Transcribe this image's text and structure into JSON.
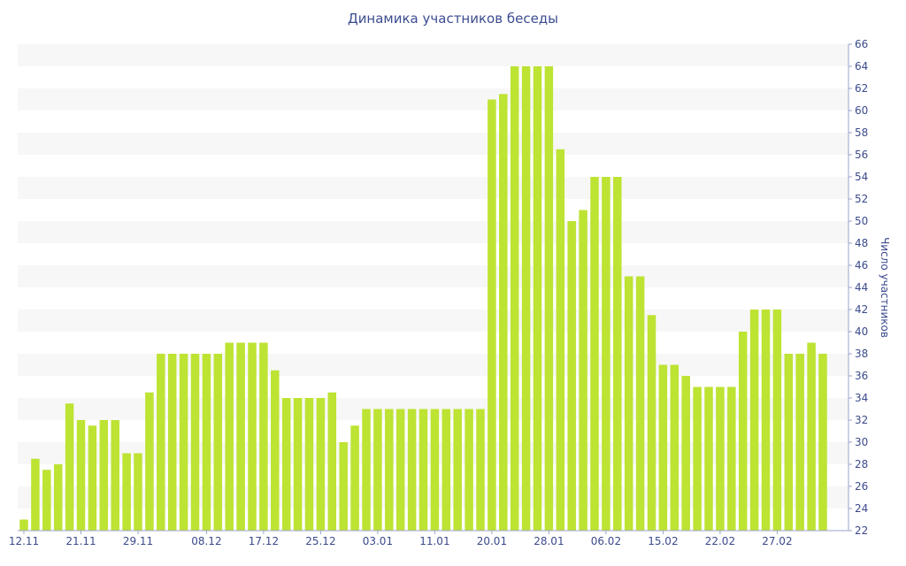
{
  "chart_data": {
    "type": "bar",
    "title": "Динамика участников беседы",
    "xlabel": "",
    "ylabel": "Число участников",
    "ylim": [
      22,
      66
    ],
    "yticks": [
      22,
      24,
      26,
      28,
      30,
      32,
      34,
      36,
      38,
      40,
      42,
      44,
      46,
      48,
      50,
      52,
      54,
      56,
      58,
      60,
      62,
      64,
      66
    ],
    "y_axis_position": "right",
    "grid": "alternating horizontal bands",
    "bar_color": "#bde333",
    "band_color": "#f7f7f7",
    "text_color": "#3b4a8c",
    "xticks": [
      {
        "label": "12.11",
        "index": 0
      },
      {
        "label": "21.11",
        "index": 5
      },
      {
        "label": "29.11",
        "index": 10
      },
      {
        "label": "08.12",
        "index": 16
      },
      {
        "label": "17.12",
        "index": 21
      },
      {
        "label": "25.12",
        "index": 26
      },
      {
        "label": "03.01",
        "index": 31
      },
      {
        "label": "11.01",
        "index": 36
      },
      {
        "label": "20.01",
        "index": 41
      },
      {
        "label": "28.01",
        "index": 46
      },
      {
        "label": "06.02",
        "index": 51
      },
      {
        "label": "15.02",
        "index": 56
      },
      {
        "label": "22.02",
        "index": 61
      },
      {
        "label": "27.02",
        "index": 66
      }
    ],
    "values": [
      23,
      28.5,
      27.5,
      28,
      33.5,
      32,
      31.5,
      32,
      32,
      29,
      29,
      34.5,
      38,
      38,
      38,
      38,
      38,
      38,
      39,
      39,
      39,
      39,
      36.5,
      34,
      34,
      34,
      34,
      34.5,
      30,
      31.5,
      33,
      33,
      33,
      33,
      33,
      33,
      33,
      33,
      33,
      33,
      33,
      61,
      61.5,
      64,
      64,
      64,
      64,
      56.5,
      50,
      51,
      54,
      54,
      54,
      45,
      45,
      41.5,
      37,
      37,
      36,
      35,
      35,
      35,
      35,
      40,
      42,
      42,
      42,
      38,
      38,
      39,
      38
    ]
  }
}
